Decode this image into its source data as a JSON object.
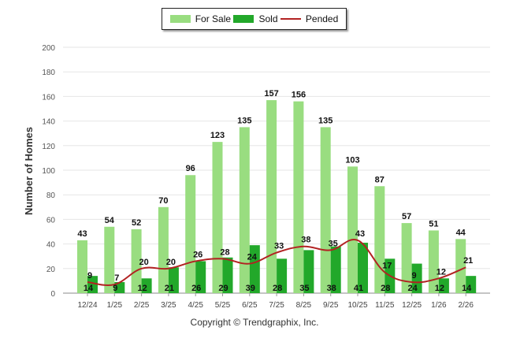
{
  "chart_data": {
    "type": "bar",
    "ylabel": "Number of Homes",
    "ylim": [
      0,
      200
    ],
    "yticks": [
      0,
      20,
      40,
      60,
      80,
      100,
      120,
      140,
      160,
      180,
      200
    ],
    "categories": [
      "12/24",
      "1/25",
      "2/25",
      "3/25",
      "4/25",
      "5/25",
      "6/25",
      "7/25",
      "8/25",
      "9/25",
      "10/25",
      "11/25",
      "12/25",
      "1/26",
      "2/26"
    ],
    "series": [
      {
        "name": "For Sale",
        "kind": "bar",
        "color": "#99dd80",
        "values": [
          43,
          54,
          52,
          70,
          96,
          123,
          135,
          157,
          156,
          135,
          103,
          87,
          57,
          51,
          44
        ]
      },
      {
        "name": "Sold",
        "kind": "bar",
        "color": "#22a82a",
        "values": [
          14,
          9,
          12,
          21,
          26,
          29,
          39,
          28,
          35,
          38,
          41,
          28,
          24,
          12,
          14
        ]
      },
      {
        "name": "Pended",
        "kind": "line",
        "color": "#b22222",
        "values": [
          9,
          7,
          20,
          20,
          26,
          28,
          24,
          33,
          38,
          35,
          43,
          17,
          9,
          12,
          21
        ]
      }
    ],
    "legend": "top-center"
  },
  "copyright": "Copyright © Trendgraphix, Inc."
}
